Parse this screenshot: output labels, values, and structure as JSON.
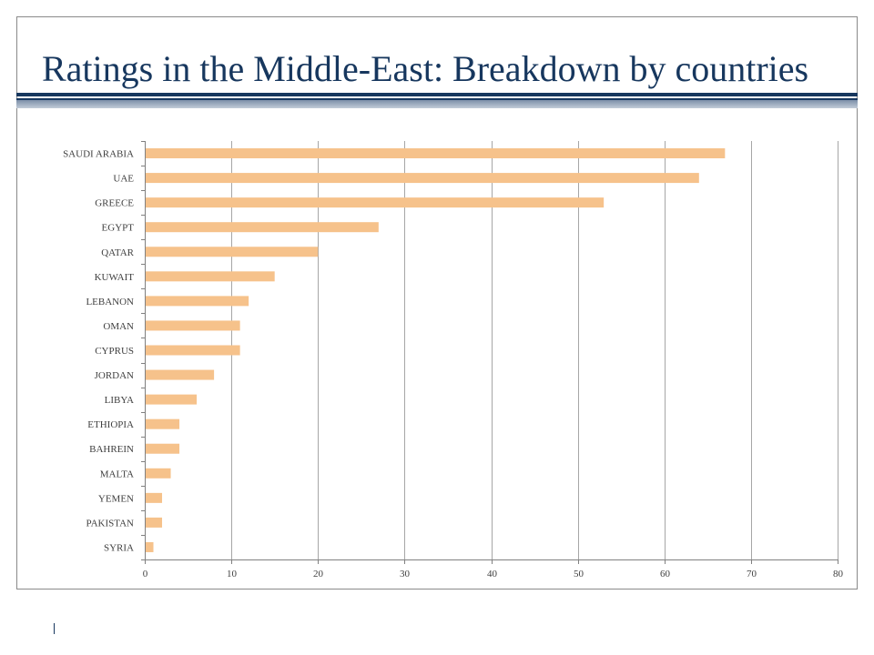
{
  "title": "Ratings in the Middle-East: Breakdown by countries",
  "colors": {
    "title": "#17375e",
    "bar": "#f6c28b",
    "rule": "#17375e",
    "gridline": "#a6a6a6"
  },
  "chart_data": {
    "type": "bar",
    "orientation": "horizontal",
    "categories": [
      "SAUDI ARABIA",
      "UAE",
      "GREECE",
      "EGYPT",
      "QATAR",
      "KUWAIT",
      "LEBANON",
      "OMAN",
      "CYPRUS",
      "JORDAN",
      "LIBYA",
      "ETHIOPIA",
      "BAHREIN",
      "MALTA",
      "YEMEN",
      "PAKISTAN",
      "SYRIA"
    ],
    "values": [
      67,
      64,
      53,
      27,
      20,
      15,
      12,
      11,
      11,
      8,
      6,
      4,
      4,
      3,
      2,
      2,
      1
    ],
    "title": "",
    "xlabel": "",
    "ylabel": "",
    "xlim": [
      0,
      80
    ],
    "xticks": [
      0,
      10,
      20,
      30,
      40,
      50,
      60,
      70,
      80
    ],
    "grid": "vertical",
    "legend": "none"
  }
}
